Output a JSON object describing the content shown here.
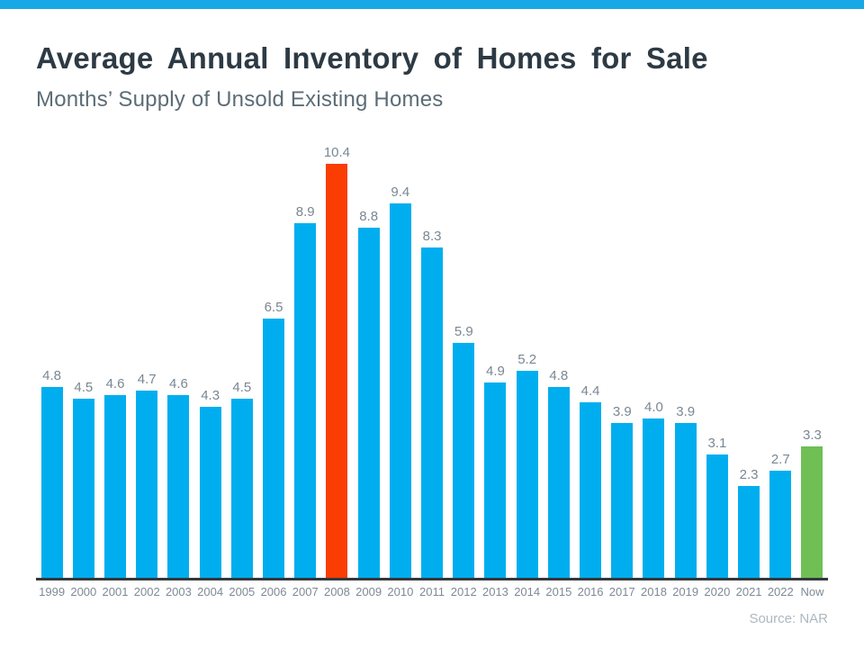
{
  "page": {
    "accent_color": "#18A8E5",
    "title": "Average Annual Inventory of Homes for Sale",
    "subtitle": "Months’ Supply of Unsold Existing Homes",
    "source": "Source: NAR"
  },
  "chart_data": {
    "type": "bar",
    "title": "Average Annual Inventory of Homes for Sale",
    "subtitle": "Months’ Supply of Unsold Existing Homes",
    "categories": [
      "1999",
      "2000",
      "2001",
      "2002",
      "2003",
      "2004",
      "2005",
      "2006",
      "2007",
      "2008",
      "2009",
      "2010",
      "2011",
      "2012",
      "2013",
      "2014",
      "2015",
      "2016",
      "2017",
      "2018",
      "2019",
      "2020",
      "2021",
      "2022",
      "Now"
    ],
    "values": [
      4.8,
      4.5,
      4.6,
      4.7,
      4.6,
      4.3,
      4.5,
      6.5,
      8.9,
      10.4,
      8.8,
      9.4,
      8.3,
      5.9,
      4.9,
      5.2,
      4.8,
      4.4,
      3.9,
      4.0,
      3.9,
      3.1,
      2.3,
      2.7,
      3.3
    ],
    "ylim": [
      0,
      10.4
    ],
    "grid": false,
    "legend": false,
    "value_label_format": "one_decimal",
    "bar_colors": {
      "default": "#00AEEF",
      "2008": "#FB3D03",
      "Now": "#6FBF55"
    },
    "value_label_color": "#7A8792",
    "axis_line_color": "#33383D",
    "tick_label_color": "#7D8A96",
    "source": "Source: NAR"
  }
}
